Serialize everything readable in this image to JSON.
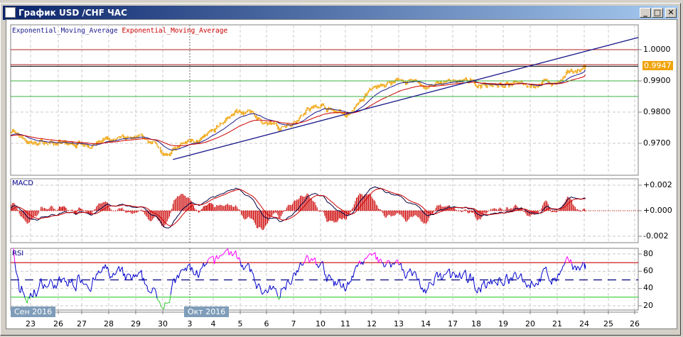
{
  "window": {
    "title": "График USD /CHF  ЧАС",
    "buttons": {
      "minimize": "_",
      "maximize": "□",
      "close": "✕"
    }
  },
  "legend": [
    {
      "label": "Exponential_Moving_Average",
      "color": "#1a1a8c"
    },
    {
      "label": "Exponential_Moving_Average",
      "color": "#cc0000"
    }
  ],
  "panels": {
    "macd_title": "MACD",
    "rsi_title": "RSI"
  },
  "chart_data": [
    {
      "type": "line",
      "title": "USD/CHF H1",
      "price_axis": {
        "ticks": [
          "1.0000",
          "0.9900",
          "0.9800",
          "0.9700"
        ],
        "ylim": [
          0.9618,
          1.01
        ]
      },
      "current_price": "0.9947",
      "x_ticks": [
        "23",
        "26",
        "27",
        "28",
        "29",
        "30",
        "3",
        "4",
        "5",
        "6",
        "7",
        "10",
        "11",
        "12",
        "13",
        "14",
        "17",
        "18",
        "19",
        "20",
        "21",
        "24",
        "25",
        "26"
      ],
      "month_labels": [
        "Сен 2016",
        "Окт 2016"
      ],
      "price_series": {
        "color": "#f0a30a",
        "days": [
          "22",
          "23",
          "26",
          "27",
          "28",
          "29",
          "30",
          "3",
          "4",
          "5",
          "6",
          "7",
          "10",
          "11",
          "12",
          "13",
          "14",
          "17",
          "18",
          "19",
          "20",
          "21",
          "24"
        ],
        "close_00h_12h": [
          [
            0.973,
            0.973
          ],
          [
            0.97,
            0.9705
          ],
          [
            0.97,
            0.9695
          ],
          [
            0.9705,
            0.97
          ],
          [
            0.971,
            0.9708
          ],
          [
            0.9712,
            0.9706
          ],
          [
            0.9675,
            0.968
          ],
          [
            0.9705,
            0.9712
          ],
          [
            0.973,
            0.978
          ],
          [
            0.9805,
            0.979
          ],
          [
            0.976,
            0.975
          ],
          [
            0.9775,
            0.9805
          ],
          [
            0.982,
            0.98
          ],
          [
            0.979,
            0.982
          ],
          [
            0.987,
            0.989
          ],
          [
            0.9905,
            0.99
          ],
          [
            0.988,
            0.9885
          ],
          [
            0.9895,
            0.989
          ],
          [
            0.989,
            0.9885
          ],
          [
            0.9892,
            0.989
          ],
          [
            0.9888,
            0.9895
          ],
          [
            0.989,
            0.9925
          ],
          [
            0.9945,
            0.9947
          ]
        ]
      },
      "moving_averages": [
        {
          "type": "EMA",
          "color": "#1a1a8c"
        },
        {
          "type": "EMA",
          "color": "#cc0000"
        }
      ],
      "horizontal_lines": [
        {
          "value": 1.0,
          "color": "#b22222"
        },
        {
          "value": 0.9952,
          "color": "#b22222"
        },
        {
          "value": 0.9947,
          "color": "#000000"
        },
        {
          "value": 0.99,
          "color": "#3cb043"
        },
        {
          "value": 0.985,
          "color": "#3cb043"
        }
      ],
      "trendline": {
        "from": {
          "day": "30",
          "hour": 9,
          "value": 0.9648
        },
        "to": {
          "day": "26",
          "hour": 4,
          "value": 1.0039
        },
        "color": "#1a1a8c"
      },
      "grid": true
    },
    {
      "type": "line",
      "title": "MACD",
      "y_ticks": [
        "+0.002",
        "+0.000",
        "-0.002"
      ],
      "ylim": [
        -0.0025,
        0.0025
      ],
      "series": [
        {
          "color": "#000040"
        },
        {
          "color": "#cc0000"
        }
      ],
      "histogram_color": "#cc0000"
    },
    {
      "type": "line",
      "title": "RSI",
      "y_ticks": [
        "80",
        "60",
        "40",
        "20"
      ],
      "ylim": [
        15,
        83
      ],
      "levels": [
        {
          "value": 70,
          "color": "#cc0000"
        },
        {
          "value": 50,
          "color": "#000080"
        },
        {
          "value": 30,
          "color": "#33cc33"
        }
      ],
      "series_color": "#0000cc",
      "overbought_color": "#ff00ff",
      "oversold_color": "#33cc33"
    }
  ]
}
